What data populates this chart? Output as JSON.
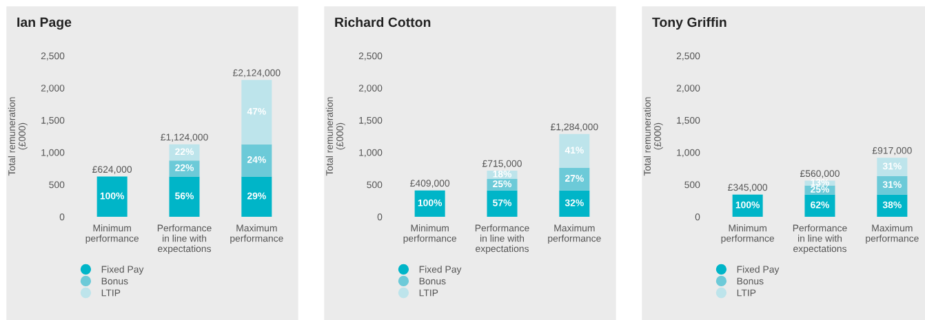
{
  "chart_data": [
    {
      "type": "bar",
      "title": "Ian Page",
      "stacked": true,
      "ylabel": "Total remuneration\n(£000)",
      "categories": [
        "Minimum\nperformance",
        "Performance\nin line with\nexpectations",
        "Maximum\nperformance"
      ],
      "ylim": [
        0,
        2500
      ],
      "yticks": [
        0,
        500,
        {
          "value": 1000,
          "label": "1,000"
        },
        {
          "value": 1500,
          "label": "1,500"
        },
        {
          "value": 2000,
          "label": "2,000"
        },
        {
          "value": 2500,
          "label": "2,500"
        }
      ],
      "legend": "bottom left",
      "marker": "circle",
      "grid": false,
      "totals": [
        "£624,000",
        "£1,124,000",
        "£2,124,000"
      ],
      "series": [
        {
          "name": "Fixed Pay",
          "color": "#00b5c8",
          "values": [
            624,
            624,
            624
          ]
        },
        {
          "name": "Bonus",
          "color": "#6ccad8",
          "values": [
            0,
            250,
            500
          ]
        },
        {
          "name": "LTIP",
          "color": "#bde4eb",
          "values": [
            0,
            250,
            1000
          ]
        }
      ],
      "annotations": [
        "100%",
        "56%",
        "29%",
        "22%",
        "24%",
        "22%",
        "47%"
      ]
    },
    {
      "type": "bar",
      "title": "Richard Cotton",
      "stacked": true,
      "ylabel": "Total remuneration\n(£000)",
      "categories": [
        "Minimum\nperformance",
        "Performance\nin line with\nexpectations",
        "Maximum\nperformance"
      ],
      "ylim": [
        0,
        2500
      ],
      "yticks": [
        0,
        500,
        {
          "value": 1000,
          "label": "1,000"
        },
        {
          "value": 1500,
          "label": "1,500"
        },
        {
          "value": 2000,
          "label": "2,000"
        },
        {
          "value": 2500,
          "label": "2,500"
        }
      ],
      "legend": "bottom left",
      "marker": "circle",
      "grid": false,
      "totals": [
        "£409,000",
        "£715,000",
        "£1,284,000"
      ],
      "series": [
        {
          "name": "Fixed Pay",
          "color": "#00b5c8",
          "values": [
            409,
            409,
            409
          ]
        },
        {
          "name": "Bonus",
          "color": "#6ccad8",
          "values": [
            0,
            179,
            350
          ]
        },
        {
          "name": "LTIP",
          "color": "#bde4eb",
          "values": [
            0,
            127,
            525
          ]
        }
      ],
      "annotations": [
        "100%",
        "57%",
        "32%",
        "25%",
        "27%",
        "18%",
        "41%"
      ]
    },
    {
      "type": "bar",
      "title": "Tony Griffin",
      "stacked": true,
      "ylabel": "Total remuneration\n(£000)",
      "categories": [
        "Minimum\nperformance",
        "Performance\nin line with\nexpectations",
        "Maximum\nperformance"
      ],
      "ylim": [
        0,
        2500
      ],
      "yticks": [
        0,
        500,
        {
          "value": 1000,
          "label": "1,000"
        },
        {
          "value": 1500,
          "label": "1,500"
        },
        {
          "value": 2000,
          "label": "2,000"
        },
        {
          "value": 2500,
          "label": "2,500"
        }
      ],
      "legend": "bottom left",
      "marker": "circle",
      "grid": false,
      "totals": [
        "£345,000",
        "£560,000",
        "£917,000"
      ],
      "series": [
        {
          "name": "Fixed Pay",
          "color": "#00b5c8",
          "values": [
            345,
            345,
            345
          ]
        },
        {
          "name": "Bonus",
          "color": "#6ccad8",
          "values": [
            0,
            140,
            286
          ]
        },
        {
          "name": "LTIP",
          "color": "#bde4eb",
          "values": [
            0,
            75,
            286
          ]
        }
      ],
      "annotations": [
        "100%",
        "62%",
        "38%",
        "25%",
        "31%",
        "13%",
        "31%"
      ]
    }
  ]
}
